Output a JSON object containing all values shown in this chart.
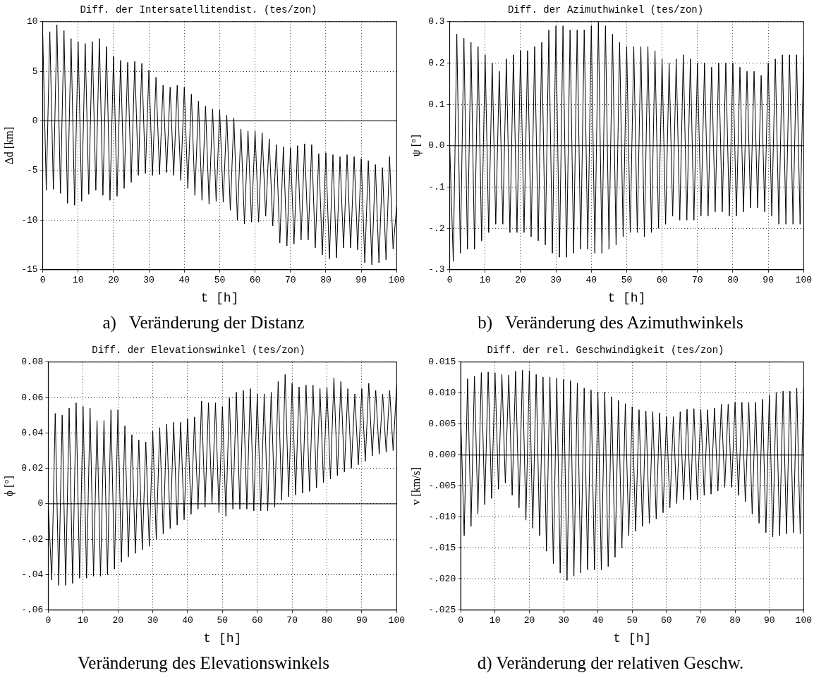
{
  "chart_data": [
    {
      "type": "line",
      "title": "Diff. der Intersatellitendist. (tes/zon)",
      "xlabel": "t [h]",
      "ylabel": "Δd [km]",
      "annotations": [
        "a)   Veränderung der Distanz"
      ],
      "grid": true,
      "xlim": [
        0,
        100
      ],
      "xticks": [
        0,
        10,
        20,
        30,
        40,
        50,
        60,
        70,
        80,
        90,
        100
      ],
      "ylim": [
        -15,
        10
      ],
      "yticks": [
        -15,
        -10,
        -5,
        0,
        5,
        10
      ],
      "ref_lines": [
        {
          "axis": "y",
          "value": 0,
          "color": "#000000"
        }
      ],
      "x": [
        0,
        1,
        2,
        3,
        4,
        5,
        6,
        7,
        8,
        9,
        10,
        11,
        12,
        13,
        14,
        15,
        16,
        17,
        18,
        19,
        20,
        21,
        22,
        23,
        24,
        25,
        26,
        27,
        28,
        29,
        30,
        31,
        32,
        33,
        34,
        35,
        36,
        37,
        38,
        39,
        40,
        41,
        42,
        43,
        44,
        45,
        46,
        47,
        48,
        49,
        50,
        51,
        52,
        53,
        54,
        55,
        56,
        57,
        58,
        59,
        60,
        61,
        62,
        63,
        64,
        65,
        66,
        67,
        68,
        69,
        70,
        71,
        72,
        73,
        74,
        75,
        76,
        77,
        78,
        79,
        80,
        81,
        82,
        83,
        84,
        85,
        86,
        87,
        88,
        89,
        90,
        91,
        92,
        93,
        94,
        95,
        96,
        97,
        98,
        99,
        100
      ],
      "series": [
        {
          "color": "#000000",
          "values": [
            8.7,
            -7.0,
            9.0,
            -6.9,
            9.7,
            -7.3,
            9.1,
            -8.3,
            8.3,
            -8.5,
            8.0,
            -8.1,
            7.8,
            -7.4,
            8.0,
            -7.0,
            8.3,
            -7.5,
            7.5,
            -8.0,
            6.5,
            -7.6,
            6.1,
            -6.8,
            5.9,
            -6.2,
            6.0,
            -5.5,
            5.8,
            -5.3,
            5.1,
            -5.5,
            4.4,
            -5.4,
            3.6,
            -5.2,
            3.4,
            -5.5,
            3.6,
            -6.0,
            3.4,
            -6.8,
            2.7,
            -7.5,
            2.0,
            -8.0,
            1.5,
            -8.4,
            1.2,
            -8.1,
            1.1,
            -8.2,
            0.6,
            -9.0,
            0.3,
            -10.0,
            -0.8,
            -10.4,
            -1.0,
            -10.2,
            -1.0,
            -10.2,
            -1.2,
            -9.6,
            -1.8,
            -10.6,
            -2.4,
            -12.3,
            -2.6,
            -12.6,
            -2.7,
            -12.4,
            -2.5,
            -12.0,
            -2.3,
            -12.0,
            -2.4,
            -12.8,
            -3.3,
            -13.5,
            -3.2,
            -13.9,
            -3.4,
            -13.8,
            -3.6,
            -12.8,
            -3.4,
            -12.8,
            -3.6,
            -13.0,
            -3.8,
            -14.3,
            -4.0,
            -14.5,
            -4.4,
            -14.3,
            -4.7,
            -14.0,
            -3.6,
            -12.9,
            -8.6
          ]
        }
      ]
    },
    {
      "type": "line",
      "title": "Diff. der Azimuthwinkel (tes/zon)",
      "xlabel": "t [h]",
      "ylabel": "ψ [°]",
      "annotations": [
        "b)   Veränderung des Azimuthwinkels"
      ],
      "grid": true,
      "xlim": [
        0,
        100
      ],
      "xticks": [
        0,
        10,
        20,
        30,
        40,
        50,
        60,
        70,
        80,
        90,
        100
      ],
      "ylim": [
        -0.3,
        0.3
      ],
      "yticks": [
        {
          "value": -0.3,
          "label": "-.3"
        },
        {
          "value": -0.2,
          "label": "-.2"
        },
        {
          "value": -0.1,
          "label": "-.1"
        },
        {
          "value": 0,
          "label": "0.0"
        },
        0.1,
        0.2,
        0.3
      ],
      "ref_lines": [
        {
          "axis": "y",
          "value": 0,
          "color": "#000000"
        }
      ],
      "x": [
        0,
        1,
        2,
        3,
        4,
        5,
        6,
        7,
        8,
        9,
        10,
        11,
        12,
        13,
        14,
        15,
        16,
        17,
        18,
        19,
        20,
        21,
        22,
        23,
        24,
        25,
        26,
        27,
        28,
        29,
        30,
        31,
        32,
        33,
        34,
        35,
        36,
        37,
        38,
        39,
        40,
        41,
        42,
        43,
        44,
        45,
        46,
        47,
        48,
        49,
        50,
        51,
        52,
        53,
        54,
        55,
        56,
        57,
        58,
        59,
        60,
        61,
        62,
        63,
        64,
        65,
        66,
        67,
        68,
        69,
        70,
        71,
        72,
        73,
        74,
        75,
        76,
        77,
        78,
        79,
        80,
        81,
        82,
        83,
        84,
        85,
        86,
        87,
        88,
        89,
        90,
        91,
        92,
        93,
        94,
        95,
        96,
        97,
        98,
        99,
        100
      ],
      "series": [
        {
          "color": "#000000",
          "values": [
            0.0,
            -0.28,
            0.27,
            -0.26,
            0.26,
            -0.25,
            0.25,
            -0.25,
            0.24,
            -0.23,
            0.22,
            -0.21,
            0.2,
            -0.19,
            0.18,
            -0.19,
            0.21,
            -0.21,
            0.22,
            -0.21,
            0.23,
            -0.21,
            0.23,
            -0.22,
            0.24,
            -0.23,
            0.25,
            -0.24,
            0.28,
            -0.26,
            0.29,
            -0.27,
            0.29,
            -0.27,
            0.28,
            -0.26,
            0.28,
            -0.25,
            0.28,
            -0.25,
            0.29,
            -0.26,
            0.3,
            -0.26,
            0.29,
            -0.25,
            0.27,
            -0.24,
            0.25,
            -0.22,
            0.24,
            -0.21,
            0.24,
            -0.21,
            0.24,
            -0.22,
            0.24,
            -0.21,
            0.23,
            -0.2,
            0.21,
            -0.19,
            0.2,
            -0.17,
            0.21,
            -0.18,
            0.22,
            -0.18,
            0.21,
            -0.18,
            0.2,
            -0.17,
            0.2,
            -0.17,
            0.19,
            -0.16,
            0.2,
            -0.16,
            0.2,
            -0.17,
            0.2,
            -0.17,
            0.19,
            -0.16,
            0.18,
            -0.15,
            0.18,
            -0.15,
            0.17,
            -0.16,
            0.2,
            -0.17,
            0.21,
            -0.19,
            0.22,
            -0.19,
            0.22,
            -0.19,
            0.22,
            -0.19,
            0.22
          ]
        }
      ]
    },
    {
      "type": "line",
      "title": "Diff. der Elevationswinkel (tes/zon)",
      "xlabel": "t [h]",
      "ylabel": "ϕ [°]",
      "annotations": [
        "Veränderung des Elevationswinkels"
      ],
      "grid": true,
      "xlim": [
        0,
        100
      ],
      "xticks": [
        0,
        10,
        20,
        30,
        40,
        50,
        60,
        70,
        80,
        90,
        100
      ],
      "ylim": [
        -0.06,
        0.08
      ],
      "yticks": [
        {
          "value": -0.06,
          "label": "-.06"
        },
        {
          "value": -0.04,
          "label": "-.04"
        },
        {
          "value": -0.02,
          "label": "-.02"
        },
        0,
        0.02,
        0.04,
        0.06,
        0.08
      ],
      "ref_lines": [
        {
          "axis": "y",
          "value": 0,
          "color": "#000000"
        }
      ],
      "x": [
        0,
        1,
        2,
        3,
        4,
        5,
        6,
        7,
        8,
        9,
        10,
        11,
        12,
        13,
        14,
        15,
        16,
        17,
        18,
        19,
        20,
        21,
        22,
        23,
        24,
        25,
        26,
        27,
        28,
        29,
        30,
        31,
        32,
        33,
        34,
        35,
        36,
        37,
        38,
        39,
        40,
        41,
        42,
        43,
        44,
        45,
        46,
        47,
        48,
        49,
        50,
        51,
        52,
        53,
        54,
        55,
        56,
        57,
        58,
        59,
        60,
        61,
        62,
        63,
        64,
        65,
        66,
        67,
        68,
        69,
        70,
        71,
        72,
        73,
        74,
        75,
        76,
        77,
        78,
        79,
        80,
        81,
        82,
        83,
        84,
        85,
        86,
        87,
        88,
        89,
        90,
        91,
        92,
        93,
        94,
        95,
        96,
        97,
        98,
        99,
        100
      ],
      "series": [
        {
          "color": "#000000",
          "values": [
            0.0,
            -0.043,
            0.051,
            -0.046,
            0.05,
            -0.046,
            0.054,
            -0.045,
            0.057,
            -0.042,
            0.055,
            -0.042,
            0.054,
            -0.041,
            0.047,
            -0.041,
            0.047,
            -0.04,
            0.053,
            -0.037,
            0.053,
            -0.033,
            0.044,
            -0.03,
            0.039,
            -0.028,
            0.036,
            -0.026,
            0.035,
            -0.024,
            0.041,
            -0.02,
            0.043,
            -0.017,
            0.045,
            -0.014,
            0.046,
            -0.012,
            0.046,
            -0.009,
            0.048,
            -0.006,
            0.049,
            -0.003,
            0.058,
            -0.002,
            0.057,
            0,
            0.057,
            -0.005,
            0.055,
            -0.007,
            0.06,
            -0.003,
            0.063,
            -0.003,
            0.064,
            -0.003,
            0.065,
            -0.004,
            0.062,
            -0.004,
            0.062,
            -0.004,
            0.063,
            -0.002,
            0.069,
            0.002,
            0.073,
            0.004,
            0.068,
            0.005,
            0.066,
            0.006,
            0.067,
            0.007,
            0.067,
            0.009,
            0.065,
            0.012,
            0.066,
            0.014,
            0.071,
            0.016,
            0.069,
            0.018,
            0.065,
            0.02,
            0.062,
            0.022,
            0.065,
            0.024,
            0.068,
            0.027,
            0.064,
            0.028,
            0.062,
            0.029,
            0.064,
            0.03,
            0.067
          ]
        }
      ]
    },
    {
      "type": "line",
      "title": "Diff. der rel. Geschwindigkeit (tes/zon)",
      "xlabel": "t [h]",
      "ylabel": "v [km/s]",
      "annotations": [
        "d) Veränderung der relativen Geschw."
      ],
      "grid": true,
      "xlim": [
        0,
        100
      ],
      "xticks": [
        0,
        10,
        20,
        30,
        40,
        50,
        60,
        70,
        80,
        90,
        100
      ],
      "ylim": [
        -0.025,
        0.015
      ],
      "yticks": [
        {
          "value": -0.025,
          "label": "-.025"
        },
        {
          "value": -0.02,
          "label": "-.020"
        },
        {
          "value": -0.015,
          "label": "-.015"
        },
        {
          "value": -0.01,
          "label": "-.010"
        },
        {
          "value": -0.005,
          "label": "-.005"
        },
        {
          "value": 0,
          "label": "0.000"
        },
        0.005,
        {
          "value": 0.01,
          "label": "0.010"
        },
        0.015
      ],
      "ref_lines": [
        {
          "axis": "y",
          "value": 0,
          "color": "#000000"
        }
      ],
      "x": [
        0,
        1,
        2,
        3,
        4,
        5,
        6,
        7,
        8,
        9,
        10,
        11,
        12,
        13,
        14,
        15,
        16,
        17,
        18,
        19,
        20,
        21,
        22,
        23,
        24,
        25,
        26,
        27,
        28,
        29,
        30,
        31,
        32,
        33,
        34,
        35,
        36,
        37,
        38,
        39,
        40,
        41,
        42,
        43,
        44,
        45,
        46,
        47,
        48,
        49,
        50,
        51,
        52,
        53,
        54,
        55,
        56,
        57,
        58,
        59,
        60,
        61,
        62,
        63,
        64,
        65,
        66,
        67,
        68,
        69,
        70,
        71,
        72,
        73,
        74,
        75,
        76,
        77,
        78,
        79,
        80,
        81,
        82,
        83,
        84,
        85,
        86,
        87,
        88,
        89,
        90,
        91,
        92,
        93,
        94,
        95,
        96,
        97,
        98,
        99,
        100
      ],
      "series": [
        {
          "color": "#000000",
          "values": [
            0.006,
            -0.013,
            0.0123,
            -0.0115,
            0.0127,
            -0.0095,
            0.0133,
            -0.008,
            0.0134,
            -0.007,
            0.0133,
            -0.0055,
            0.013,
            -0.0045,
            0.0129,
            -0.0065,
            0.0135,
            -0.0085,
            0.0137,
            -0.0105,
            0.0136,
            -0.0118,
            0.013,
            -0.013,
            0.0126,
            -0.0155,
            0.0126,
            -0.0175,
            0.0124,
            -0.019,
            0.0122,
            -0.0202,
            0.012,
            -0.0195,
            0.0116,
            -0.019,
            0.0108,
            -0.0185,
            0.0105,
            -0.0185,
            0.0102,
            -0.0185,
            0.0102,
            -0.018,
            0.0094,
            -0.0165,
            0.0088,
            -0.015,
            0.0083,
            -0.013,
            0.0078,
            -0.0123,
            0.0073,
            -0.0115,
            0.0071,
            -0.011,
            0.007,
            -0.0103,
            0.0068,
            -0.0093,
            0.0062,
            -0.0085,
            0.0062,
            -0.0078,
            0.007,
            -0.0072,
            0.0074,
            -0.0073,
            0.0075,
            -0.0072,
            0.0074,
            -0.0065,
            0.0073,
            -0.0063,
            0.0076,
            -0.0058,
            0.0082,
            -0.0052,
            0.0082,
            -0.0052,
            0.0085,
            -0.0065,
            0.0085,
            -0.0075,
            0.0085,
            -0.0095,
            0.0085,
            -0.011,
            0.009,
            -0.0125,
            0.0097,
            -0.0132,
            0.0101,
            -0.013,
            0.0103,
            -0.0127,
            0.0103,
            -0.0125,
            0.0108,
            -0.0127,
            0.011
          ]
        }
      ]
    }
  ]
}
